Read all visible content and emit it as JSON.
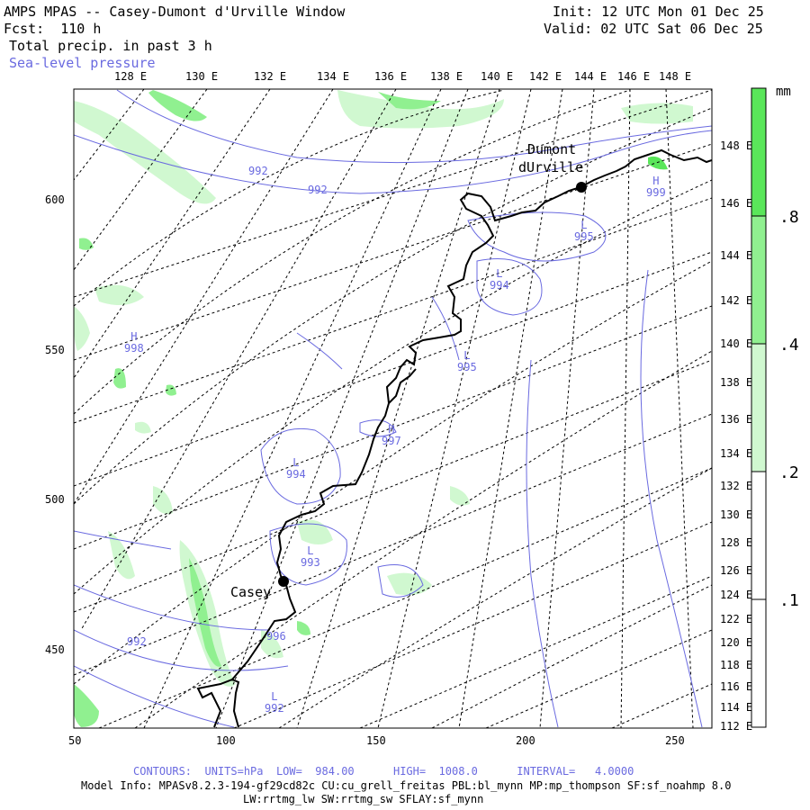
{
  "header": {
    "title": "AMPS MPAS -- Casey-Dumont d'Urville Window",
    "forecast": "Fcst:  110 h",
    "field": "Total precip. in past 3 h",
    "overlay": "Sea-level pressure",
    "init": "Init: 12 UTC Mon 01 Dec 25",
    "valid": "Valid: 02 UTC Sat 06 Dec 25"
  },
  "top_lon_labels": [
    "128 E",
    "130 E",
    "132 E",
    "134 E",
    "136 E",
    "138 E",
    "140 E",
    "142 E",
    "144 E",
    "146 E",
    "148 E"
  ],
  "right_lon_labels": [
    "148 E",
    "146 E",
    "144 E",
    "142 E",
    "140 E",
    "138 E",
    "136 E",
    "134 E",
    "132 E",
    "130 E",
    "128 E",
    "126 E",
    "124 E",
    "122 E",
    "120 E",
    "118 E",
    "116 E",
    "114 E",
    "112 E"
  ],
  "x_ticks": [
    "50",
    "100",
    "150",
    "200",
    "250"
  ],
  "y_ticks": [
    "600",
    "550",
    "500",
    "450"
  ],
  "stations": [
    {
      "name": "Dumont dUrville",
      "line1": "Dumont",
      "line2": "dUrville"
    },
    {
      "name": "Casey",
      "line1": "Casey"
    }
  ],
  "pressure_labels": [
    {
      "letter": "",
      "value": "992"
    },
    {
      "letter": "",
      "value": "992"
    },
    {
      "letter": "H",
      "value": "998"
    },
    {
      "letter": "L",
      "value": "995"
    },
    {
      "letter": "L",
      "value": "994"
    },
    {
      "letter": "L",
      "value": "995"
    },
    {
      "letter": "H",
      "value": "997"
    },
    {
      "letter": "L",
      "value": "994"
    },
    {
      "letter": "L",
      "value": "993"
    },
    {
      "letter": "",
      "value": "992"
    },
    {
      "letter": "",
      "value": "996"
    },
    {
      "letter": "L",
      "value": "992"
    },
    {
      "letter": "H",
      "value": "999"
    }
  ],
  "colorbar": {
    "unit": "mm",
    "labels": [
      ".8",
      ".4",
      ".2",
      ".1"
    ],
    "colors": [
      "#5ae65a",
      "#90f090",
      "#d0f8d0",
      "#ffffff"
    ]
  },
  "footer": {
    "contours": "CONTOURS:  UNITS=hPa  LOW=  984.00      HIGH=  1008.0      INTERVAL=   4.0000",
    "model_info": "Model Info: MPASv8.2.3-194-gf29cd82c CU:cu_grell_freitas PBL:bl_mynn MP:mp_thompson SF:sf_noahmp 8.0",
    "model_info2": "LW:rrtmg_lw SW:rrtmg_sw SFLAY:sf_mynn"
  },
  "colors": {
    "contour": "#6a6ae0",
    "precip_light": "#d0f8d0",
    "precip_mid": "#90f090",
    "precip_heavy": "#5ae65a"
  }
}
